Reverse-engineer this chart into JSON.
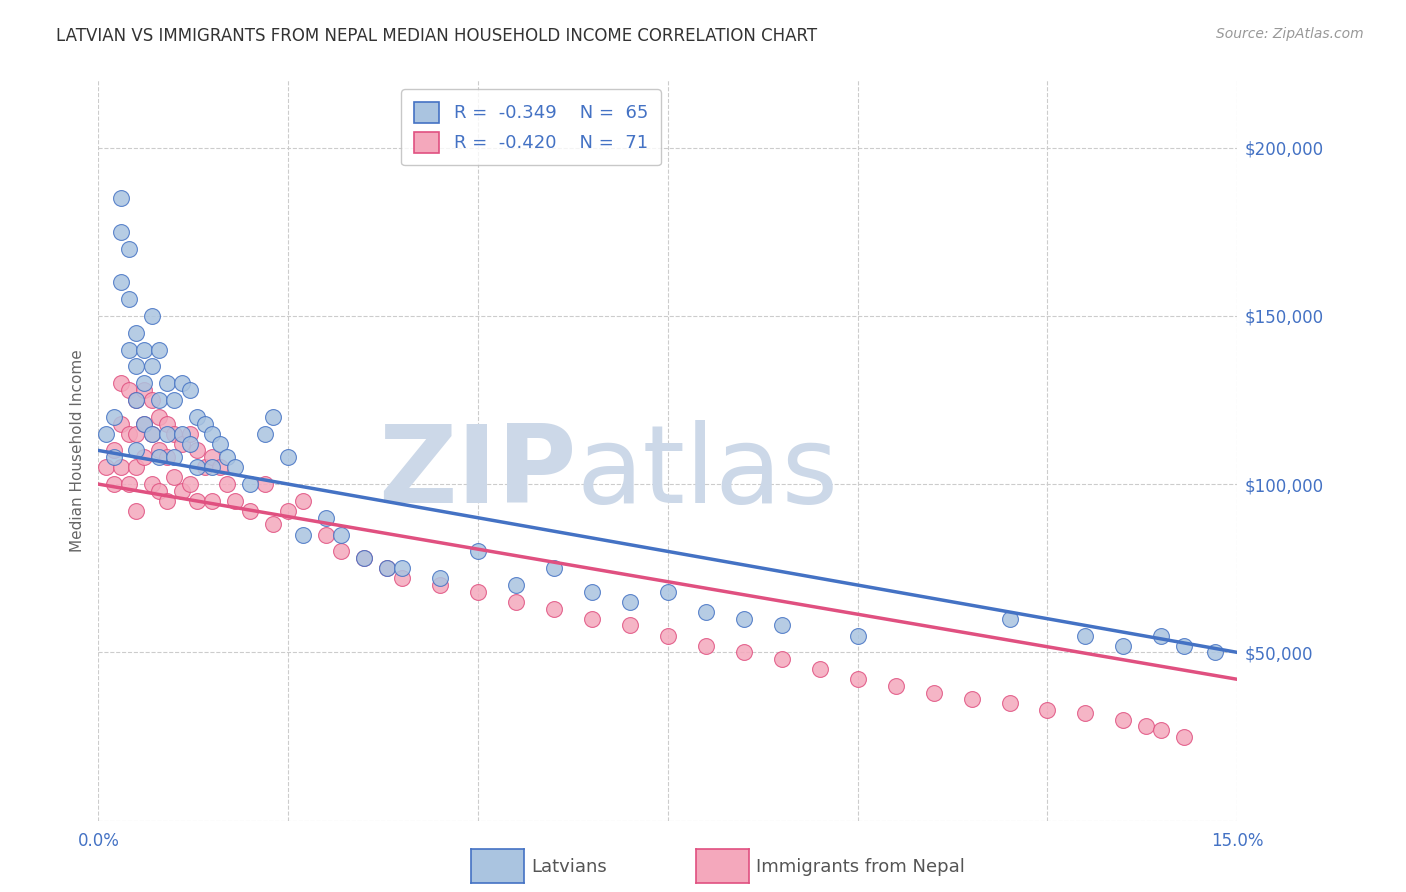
{
  "title": "LATVIAN VS IMMIGRANTS FROM NEPAL MEDIAN HOUSEHOLD INCOME CORRELATION CHART",
  "source": "Source: ZipAtlas.com",
  "ylabel": "Median Household Income",
  "xmin": 0.0,
  "xmax": 0.15,
  "ymin": 0,
  "ymax": 220000,
  "yticks": [
    0,
    50000,
    100000,
    150000,
    200000
  ],
  "ytick_labels": [
    "",
    "$50,000",
    "$100,000",
    "$150,000",
    "$200,000"
  ],
  "xticks": [
    0.0,
    0.025,
    0.05,
    0.075,
    0.1,
    0.125,
    0.15
  ],
  "xtick_labels": [
    "0.0%",
    "",
    "",
    "",
    "",
    "",
    "15.0%"
  ],
  "latvian_R": -0.349,
  "latvian_N": 65,
  "nepal_R": -0.42,
  "nepal_N": 71,
  "latvian_color": "#aac4e0",
  "nepal_color": "#f4a8bc",
  "latvian_line_color": "#4472c4",
  "nepal_line_color": "#e05080",
  "background_color": "#ffffff",
  "grid_color": "#cccccc",
  "watermark": "ZIPatlas",
  "watermark_color": "#ccd8e8",
  "latvian_scatter_x": [
    0.001,
    0.002,
    0.002,
    0.003,
    0.003,
    0.003,
    0.004,
    0.004,
    0.004,
    0.005,
    0.005,
    0.005,
    0.005,
    0.006,
    0.006,
    0.006,
    0.007,
    0.007,
    0.007,
    0.008,
    0.008,
    0.008,
    0.009,
    0.009,
    0.01,
    0.01,
    0.011,
    0.011,
    0.012,
    0.012,
    0.013,
    0.013,
    0.014,
    0.015,
    0.015,
    0.016,
    0.017,
    0.018,
    0.02,
    0.022,
    0.023,
    0.025,
    0.027,
    0.03,
    0.032,
    0.035,
    0.038,
    0.04,
    0.045,
    0.05,
    0.055,
    0.06,
    0.065,
    0.07,
    0.075,
    0.08,
    0.085,
    0.09,
    0.1,
    0.12,
    0.13,
    0.135,
    0.14,
    0.143,
    0.147
  ],
  "latvian_scatter_y": [
    115000,
    120000,
    108000,
    185000,
    175000,
    160000,
    170000,
    155000,
    140000,
    145000,
    135000,
    125000,
    110000,
    140000,
    130000,
    118000,
    150000,
    135000,
    115000,
    140000,
    125000,
    108000,
    130000,
    115000,
    125000,
    108000,
    130000,
    115000,
    128000,
    112000,
    120000,
    105000,
    118000,
    115000,
    105000,
    112000,
    108000,
    105000,
    100000,
    115000,
    120000,
    108000,
    85000,
    90000,
    85000,
    78000,
    75000,
    75000,
    72000,
    80000,
    70000,
    75000,
    68000,
    65000,
    68000,
    62000,
    60000,
    58000,
    55000,
    60000,
    55000,
    52000,
    55000,
    52000,
    50000
  ],
  "nepal_scatter_x": [
    0.001,
    0.002,
    0.002,
    0.003,
    0.003,
    0.003,
    0.004,
    0.004,
    0.004,
    0.005,
    0.005,
    0.005,
    0.005,
    0.006,
    0.006,
    0.006,
    0.007,
    0.007,
    0.007,
    0.008,
    0.008,
    0.008,
    0.009,
    0.009,
    0.009,
    0.01,
    0.01,
    0.011,
    0.011,
    0.012,
    0.012,
    0.013,
    0.013,
    0.014,
    0.015,
    0.015,
    0.016,
    0.017,
    0.018,
    0.02,
    0.022,
    0.023,
    0.025,
    0.027,
    0.03,
    0.032,
    0.035,
    0.038,
    0.04,
    0.045,
    0.05,
    0.055,
    0.06,
    0.065,
    0.07,
    0.075,
    0.08,
    0.085,
    0.09,
    0.095,
    0.1,
    0.105,
    0.11,
    0.115,
    0.12,
    0.125,
    0.13,
    0.135,
    0.138,
    0.14,
    0.143
  ],
  "nepal_scatter_y": [
    105000,
    110000,
    100000,
    130000,
    118000,
    105000,
    128000,
    115000,
    100000,
    125000,
    115000,
    105000,
    92000,
    128000,
    118000,
    108000,
    125000,
    115000,
    100000,
    120000,
    110000,
    98000,
    118000,
    108000,
    95000,
    115000,
    102000,
    112000,
    98000,
    115000,
    100000,
    110000,
    95000,
    105000,
    108000,
    95000,
    105000,
    100000,
    95000,
    92000,
    100000,
    88000,
    92000,
    95000,
    85000,
    80000,
    78000,
    75000,
    72000,
    70000,
    68000,
    65000,
    63000,
    60000,
    58000,
    55000,
    52000,
    50000,
    48000,
    45000,
    42000,
    40000,
    38000,
    36000,
    35000,
    33000,
    32000,
    30000,
    28000,
    27000,
    25000
  ]
}
